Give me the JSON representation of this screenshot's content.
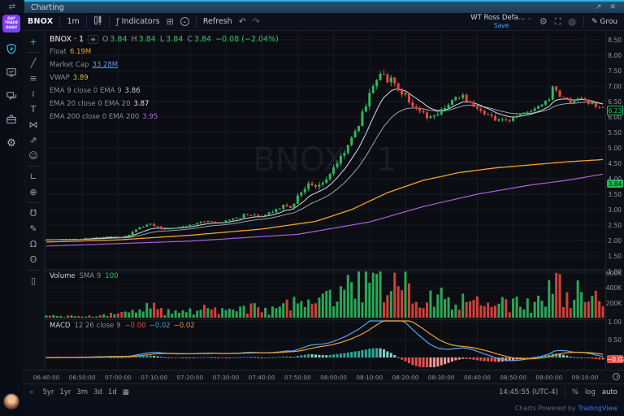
{
  "window": {
    "tab_title": "Charting"
  },
  "app_sidebar": {
    "logo_lines": [
      "DAY",
      "TRADE",
      "DASH"
    ],
    "icons": [
      "profile-shield",
      "monitor",
      "chat",
      "briefcase",
      "settings-gear"
    ]
  },
  "toolbar": {
    "symbol": "BNOX",
    "interval": "1m",
    "indicators_label": "Indicators",
    "refresh_label": "Refresh",
    "layout_name": "WT Ross Defa...",
    "save_label": "Save",
    "group_label": "Grou"
  },
  "drawing_toolbar": {
    "tools": [
      {
        "name": "crosshair",
        "glyph": "+",
        "active": true,
        "sep_after": true
      },
      {
        "name": "trend-line",
        "glyph": "╱"
      },
      {
        "name": "fib-retracement",
        "glyph": "≡"
      },
      {
        "name": "brush",
        "glyph": "≀"
      },
      {
        "name": "text-tool",
        "glyph": "T"
      },
      {
        "name": "xabcd-pattern",
        "glyph": "⋈"
      },
      {
        "name": "long-short-position",
        "glyph": "⇗"
      },
      {
        "name": "emoji",
        "glyph": "☺",
        "sep_after": true
      },
      {
        "name": "measure-ruler",
        "glyph": "∟"
      },
      {
        "name": "zoom-in",
        "glyph": "⊕",
        "sep_after": true
      },
      {
        "name": "magnet",
        "glyph": "Ʊ"
      },
      {
        "name": "drawing-mode",
        "glyph": "✎"
      },
      {
        "name": "lock-all",
        "glyph": "Ω"
      },
      {
        "name": "hide-all",
        "glyph": "ʘ",
        "sep_after": true
      },
      {
        "name": "remove-objects",
        "glyph": "▯"
      }
    ]
  },
  "legend": {
    "symbol_interval": "BNOX · 1",
    "ohlc": {
      "o": "3.84",
      "h": "3.84",
      "l": "3.84",
      "c": "3.84",
      "change": "−0.08 (−2.04%)"
    },
    "rows": [
      {
        "label": "Float",
        "params": "",
        "value": "6.19M",
        "color": "#e8a33d"
      },
      {
        "label": "Market Cap",
        "params": "",
        "value": "33.28M",
        "color": "#5aa0e8",
        "underline": true
      },
      {
        "label": "VWAP",
        "params": "",
        "value": "3.89",
        "color": "#cfc04a"
      },
      {
        "label": "EMA",
        "params": "9 close 0 EMA 9",
        "value": "3.86",
        "color": "#cfd3dc"
      },
      {
        "label": "EMA",
        "params": "20 close 0 EMA 20",
        "value": "3.87",
        "color": "#e6e8ee"
      },
      {
        "label": "EMA",
        "params": "200 close 0 EMA 200",
        "value": "3.95",
        "color": "#b36ae2"
      }
    ],
    "volume": {
      "title": "Volume",
      "params": "SMA 9",
      "value": "100",
      "value_color": "#33c269"
    },
    "macd": {
      "title": "MACD",
      "params": "12 26 close 9",
      "values": [
        {
          "text": "−0.00",
          "color": "#e25050"
        },
        {
          "text": "−0.02",
          "color": "#4a9fe8"
        },
        {
          "text": "−0.02",
          "color": "#e89b3d"
        }
      ]
    }
  },
  "time_axis": {
    "labels": [
      "06:40:00",
      "06:50:00",
      "07:00:00",
      "07:10:00",
      "07:20:00",
      "07:30:00",
      "07:40:00",
      "07:50:00",
      "08:00:00",
      "08:10:00",
      "08:20:00",
      "08:30:00",
      "08:40:00",
      "08:50:00",
      "09:00:00",
      "09:10:00"
    ]
  },
  "bottom_bar": {
    "ranges": [
      "5yr",
      "1yr",
      "3m",
      "3d",
      "1d"
    ],
    "clock": "14:45:55 (UTC-4)",
    "scale_buttons": [
      "%",
      "log",
      "auto"
    ]
  },
  "footer": {
    "text": "Charts Powered by",
    "brand": "TradingView"
  },
  "chart_data": {
    "type": "candlestick",
    "symbol": "BNOX",
    "interval": "1m",
    "watermark": "BNOX · 1",
    "seed": 42,
    "bars": 156,
    "time_start": "06:40:00",
    "time_end": "09:15:00",
    "price_axis": {
      "ticks": [
        8.5,
        8.0,
        7.5,
        7.0,
        6.5,
        6.0,
        5.5,
        5.0,
        4.5,
        4.0,
        3.5,
        3.0,
        2.5,
        2.0,
        1.5,
        1.0
      ],
      "ylim": [
        1.0,
        8.8
      ]
    },
    "volume_axis": {
      "ticks": [
        {
          "v": 600000,
          "label": "600K"
        },
        {
          "v": 400000,
          "label": "400K"
        },
        {
          "v": 200000,
          "label": "200K"
        }
      ],
      "max": 600000
    },
    "macd_axis": {
      "ticks": [
        {
          "v": 1.0,
          "label": "1.00"
        },
        {
          "v": 0.5,
          "label": "0.50"
        },
        {
          "v": 0.0,
          "label": "0.00"
        }
      ],
      "range": [
        -0.3,
        1.05
      ]
    },
    "price_badges": [
      {
        "value": 6.23,
        "text": "6.23",
        "style": "outline"
      },
      {
        "value": 3.84,
        "text": "3.84",
        "style": "solid"
      }
    ],
    "macd_badge": {
      "value": -0.02,
      "text": "−0.02"
    },
    "price_keyframes": [
      [
        0,
        2.02
      ],
      [
        10,
        2.06
      ],
      [
        18,
        2.12
      ],
      [
        22,
        2.12
      ],
      [
        26,
        2.42
      ],
      [
        29,
        2.55
      ],
      [
        32,
        2.38
      ],
      [
        36,
        2.42
      ],
      [
        40,
        2.5
      ],
      [
        44,
        2.62
      ],
      [
        48,
        2.55
      ],
      [
        52,
        2.7
      ],
      [
        56,
        2.85
      ],
      [
        60,
        2.78
      ],
      [
        63,
        2.95
      ],
      [
        66,
        3.15
      ],
      [
        68,
        3.05
      ],
      [
        70,
        3.45
      ],
      [
        73,
        3.85
      ],
      [
        75,
        3.7
      ],
      [
        78,
        4.0
      ],
      [
        80,
        4.35
      ],
      [
        83,
        4.9
      ],
      [
        86,
        5.5
      ],
      [
        89,
        6.4
      ],
      [
        91,
        7.1
      ],
      [
        93,
        7.4
      ],
      [
        95,
        7.25
      ],
      [
        98,
        6.95
      ],
      [
        101,
        6.55
      ],
      [
        104,
        6.1
      ],
      [
        107,
        5.95
      ],
      [
        110,
        6.25
      ],
      [
        113,
        6.55
      ],
      [
        116,
        6.65
      ],
      [
        119,
        6.4
      ],
      [
        122,
        6.15
      ],
      [
        125,
        5.95
      ],
      [
        128,
        5.85
      ],
      [
        131,
        6.05
      ],
      [
        134,
        6.15
      ],
      [
        137,
        6.3
      ],
      [
        140,
        6.55
      ],
      [
        141,
        6.95
      ],
      [
        143,
        6.65
      ],
      [
        146,
        6.5
      ],
      [
        149,
        6.6
      ],
      [
        152,
        6.4
      ],
      [
        155,
        6.25
      ]
    ],
    "volatility_keyframes": [
      [
        0,
        0.02
      ],
      [
        40,
        0.035
      ],
      [
        60,
        0.06
      ],
      [
        80,
        0.12
      ],
      [
        95,
        0.17
      ],
      [
        110,
        0.11
      ],
      [
        130,
        0.08
      ],
      [
        155,
        0.07
      ]
    ],
    "volume_keyframes": [
      [
        0,
        25000
      ],
      [
        10,
        20000
      ],
      [
        20,
        45000
      ],
      [
        24,
        110000
      ],
      [
        29,
        150000
      ],
      [
        34,
        70000
      ],
      [
        44,
        120000
      ],
      [
        50,
        70000
      ],
      [
        58,
        160000
      ],
      [
        64,
        90000
      ],
      [
        69,
        230000
      ],
      [
        75,
        180000
      ],
      [
        80,
        280000
      ],
      [
        84,
        380000
      ],
      [
        88,
        520000
      ],
      [
        91,
        620000
      ],
      [
        94,
        480000
      ],
      [
        98,
        420000
      ],
      [
        102,
        360000
      ],
      [
        106,
        300000
      ],
      [
        110,
        330000
      ],
      [
        114,
        260000
      ],
      [
        118,
        200000
      ],
      [
        124,
        150000
      ],
      [
        130,
        190000
      ],
      [
        134,
        160000
      ],
      [
        138,
        220000
      ],
      [
        141,
        560000
      ],
      [
        144,
        300000
      ],
      [
        148,
        430000
      ],
      [
        152,
        260000
      ],
      [
        155,
        200000
      ]
    ],
    "overlays": {
      "vwap_anchors": [
        [
          0,
          1.95
        ],
        [
          20,
          2.02
        ],
        [
          40,
          2.17
        ],
        [
          60,
          2.37
        ],
        [
          75,
          2.62
        ],
        [
          85,
          3.0
        ],
        [
          95,
          3.55
        ],
        [
          105,
          3.95
        ],
        [
          115,
          4.2
        ],
        [
          125,
          4.35
        ],
        [
          135,
          4.45
        ],
        [
          145,
          4.55
        ],
        [
          155,
          4.62
        ]
      ],
      "ema200_anchors": [
        [
          0,
          1.82
        ],
        [
          40,
          1.98
        ],
        [
          70,
          2.2
        ],
        [
          90,
          2.6
        ],
        [
          105,
          3.1
        ],
        [
          120,
          3.5
        ],
        [
          135,
          3.8
        ],
        [
          145,
          3.95
        ],
        [
          155,
          4.15
        ]
      ],
      "ema_fast_period": 9,
      "ema_slow_period": 20
    },
    "macd_config": {
      "fast": 12,
      "slow": 26,
      "signal": 9
    },
    "colors": {
      "up": "#2eb85c",
      "down": "#e5473d",
      "ema9": "#d9dce3",
      "ema20": "#9aa0ad",
      "vwap": "#f0a231",
      "ema200": "#b15be0",
      "macd_line": "#53a6f2",
      "signal_line": "#f0a231",
      "hist_pos": "#2aa79b",
      "hist_pos_weak": "#85d0c9",
      "hist_neg": "#e5504a",
      "hist_neg_weak": "#f09a94",
      "grid": "#151a26",
      "separator": "#242a38",
      "watermark": "rgba(140,155,180,0.10)"
    }
  }
}
